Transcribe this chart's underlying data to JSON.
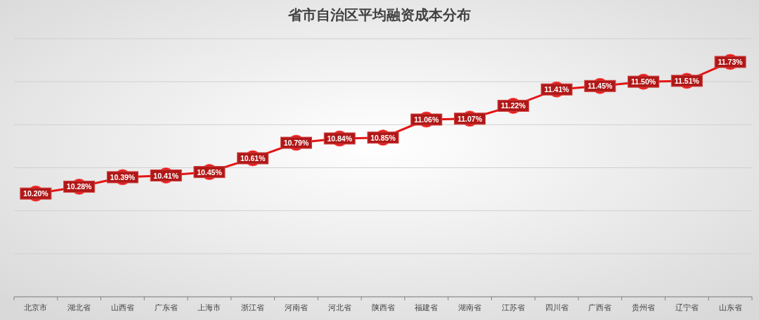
{
  "chart_data": {
    "type": "line",
    "title": "省市自治区平均融资成本分布",
    "categories": [
      "北京市",
      "湖北省",
      "山西省",
      "广东省",
      "上海市",
      "浙江省",
      "河南省",
      "河北省",
      "陕西省",
      "福建省",
      "湖南省",
      "江苏省",
      "四川省",
      "广西省",
      "贵州省",
      "辽宁省",
      "山东省"
    ],
    "values": [
      10.2,
      10.28,
      10.39,
      10.41,
      10.45,
      10.61,
      10.79,
      10.84,
      10.85,
      11.06,
      11.07,
      11.22,
      11.41,
      11.45,
      11.5,
      11.51,
      11.73
    ],
    "value_labels": [
      "10.20%",
      "10.28%",
      "10.39%",
      "10.41%",
      "10.45%",
      "10.61%",
      "10.79%",
      "10.84%",
      "10.85%",
      "11.06%",
      "11.07%",
      "11.22%",
      "11.41%",
      "11.45%",
      "11.50%",
      "11.51%",
      "11.73%"
    ],
    "color": "#e41414",
    "marker": "circle",
    "ylim": [
      9,
      12
    ],
    "yticks": [
      {
        "value": 9,
        "label": null
      },
      {
        "value": 9.5,
        "label": null
      },
      {
        "value": 10,
        "label": null
      },
      {
        "value": 10.5,
        "label": null
      },
      {
        "value": 11,
        "label": null
      },
      {
        "value": 11.5,
        "label": null
      },
      {
        "value": 12,
        "label": null
      }
    ],
    "grid": "y",
    "tick_labels": "x"
  }
}
